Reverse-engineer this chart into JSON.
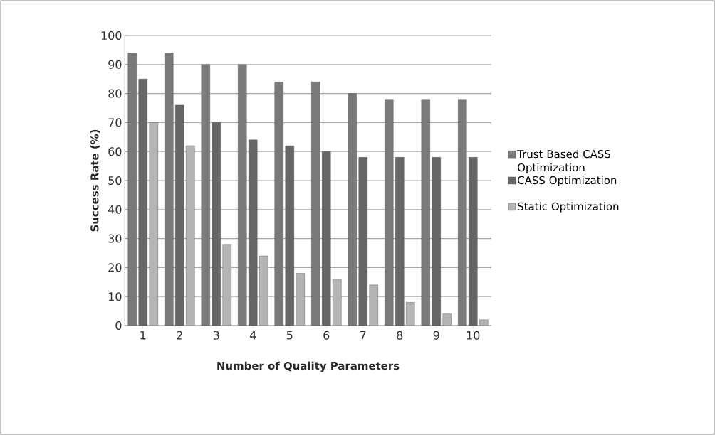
{
  "chart_data": {
    "type": "bar",
    "xlabel": "Number of Quality Parameters",
    "ylabel": "Success Rate (%)",
    "categories": [
      "1",
      "2",
      "3",
      "4",
      "5",
      "6",
      "7",
      "8",
      "9",
      "10"
    ],
    "series": [
      {
        "name": "Trust Based CASS Optimization",
        "color": "#7a7a7a",
        "values": [
          94,
          94,
          90,
          90,
          84,
          84,
          80,
          78,
          78,
          78
        ]
      },
      {
        "name": "CASS Optimization",
        "color": "#666666",
        "values": [
          85,
          76,
          70,
          64,
          62,
          60,
          58,
          58,
          58,
          58
        ]
      },
      {
        "name": "Static Optimization",
        "color": "#b4b4b4",
        "values": [
          70,
          62,
          28,
          24,
          18,
          16,
          14,
          8,
          4,
          2
        ]
      }
    ],
    "ylim": [
      0,
      100
    ],
    "yticks": [
      0,
      10,
      20,
      30,
      40,
      50,
      60,
      70,
      80,
      90,
      100
    ],
    "grid": "y",
    "legend": "right"
  }
}
